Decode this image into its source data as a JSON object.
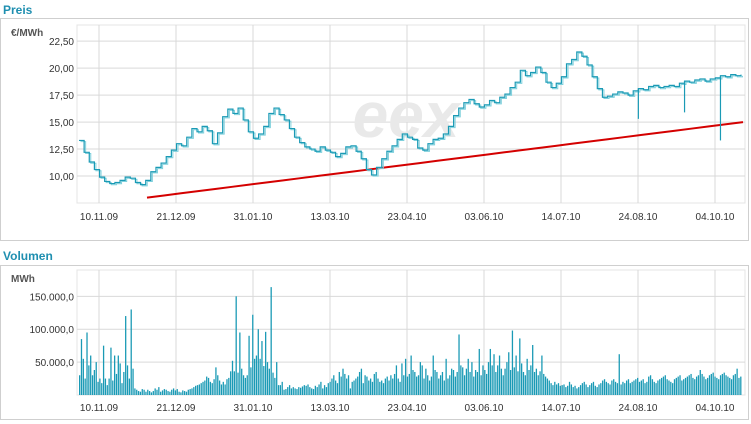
{
  "colors": {
    "title": "#1f8fb0",
    "price_line": "#1a9ab5",
    "price_line2": "#7fd0dc",
    "trend": "#d40000",
    "volume_bars": "#1a9ab5",
    "grid": "#d9d9d9",
    "watermark": "#e9e9e9",
    "watermark_accent": "#f6d6d6"
  },
  "chart_data": [
    {
      "type": "line",
      "title": "Preis",
      "ylabel": "€/MWh",
      "ylim": [
        7.5,
        24
      ],
      "yticks": [
        "10,00",
        "12,50",
        "15,00",
        "17,50",
        "20,00",
        "22,50"
      ],
      "ytick_values": [
        10,
        12.5,
        15,
        17.5,
        20,
        22.5
      ],
      "xticks": [
        "10.11.09",
        "21.12.09",
        "31.01.10",
        "13.03.10",
        "23.04.10",
        "03.06.10",
        "14.07.10",
        "24.08.10",
        "04.10.10"
      ],
      "grid": true,
      "watermark": "eex",
      "series": [
        {
          "values": [
            13.3,
            12.2,
            11.3,
            10.6,
            9.9,
            9.5,
            9.3,
            9.4,
            9.6,
            9.9,
            9.8,
            9.4,
            9.2,
            9.6,
            10.4,
            10.8,
            11.2,
            11.8,
            12.4,
            13.0,
            12.8,
            13.6,
            14.4,
            14.1,
            14.6,
            14.2,
            13.0,
            14.0,
            15.5,
            16.2,
            15.8,
            16.3,
            15.2,
            14.1,
            13.5,
            13.9,
            14.6,
            15.8,
            16.3,
            15.7,
            15.2,
            14.4,
            13.6,
            13.1,
            12.7,
            12.5,
            12.3,
            12.7,
            12.4,
            12.2,
            11.8,
            12.1,
            12.7,
            12.8,
            12.3,
            11.6,
            10.6,
            10.1,
            10.8,
            11.6,
            12.3,
            12.8,
            13.4,
            13.9,
            13.6,
            13.4,
            12.6,
            12.4,
            13.0,
            13.4,
            13.5,
            13.9,
            14.6,
            15.6,
            16.3,
            16.8,
            17.1,
            16.7,
            16.4,
            16.6,
            17.0,
            16.8,
            17.3,
            17.6,
            18.2,
            18.7,
            19.8,
            19.3,
            19.6,
            20.1,
            19.6,
            18.7,
            18.2,
            18.6,
            19.2,
            20.4,
            20.8,
            21.5,
            21.1,
            20.3,
            19.2,
            18.1,
            17.3,
            17.4,
            17.6,
            17.8,
            17.7,
            17.5,
            17.9,
            18.1,
            18.0,
            18.3,
            18.4,
            18.2,
            18.3,
            18.4,
            18.3,
            18.6,
            18.8,
            18.7,
            18.9,
            19.0,
            18.8,
            19.0,
            19.1,
            19.3,
            19.2,
            19.4,
            19.3,
            19.4
          ]
        },
        {
          "name": "",
          "values": [
            8.0,
            8.2,
            8.4,
            8.6,
            8.8,
            9.0,
            9.2,
            9.4,
            9.6,
            9.8,
            10.0,
            10.2,
            10.4,
            10.6,
            10.8,
            11.0,
            11.2,
            11.4,
            11.6,
            11.8,
            12.0,
            12.2,
            12.4,
            12.6,
            12.8,
            13.0,
            13.2,
            13.4,
            13.6,
            13.8,
            14.0,
            14.2,
            14.4,
            14.6,
            14.8,
            15.0
          ]
        }
      ],
      "spikes": [
        {
          "index": 109,
          "value": 15.3
        },
        {
          "index": 118,
          "value": 15.9
        },
        {
          "index": 125,
          "value": 13.3
        }
      ]
    },
    {
      "type": "bar",
      "title": "Volumen",
      "ylabel": "MWh",
      "ylim": [
        0,
        190000
      ],
      "yticks": [
        "50.000,0",
        "100.000,0",
        "150.000,0"
      ],
      "ytick_values": [
        50000,
        100000,
        150000
      ],
      "xticks": [
        "10.11.09",
        "21.12.09",
        "31.01.10",
        "13.03.10",
        "23.04.10",
        "03.06.10",
        "14.07.10",
        "24.08.10",
        "04.10.10"
      ],
      "grid": true,
      "values": [
        30000,
        85000,
        55000,
        25000,
        95000,
        45000,
        60000,
        30000,
        38000,
        50000,
        20000,
        25000,
        18000,
        75000,
        25000,
        15000,
        25000,
        72000,
        22000,
        60000,
        32000,
        60000,
        48000,
        18000,
        35000,
        120000,
        45000,
        25000,
        130000,
        40000,
        10000,
        8000,
        6000,
        5000,
        9000,
        8000,
        5000,
        8000,
        6000,
        4000,
        6000,
        10000,
        8000,
        12000,
        5000,
        7000,
        9000,
        8000,
        6000,
        5000,
        8000,
        10000,
        7000,
        9000,
        5000,
        4000,
        7000,
        6000,
        5000,
        8000,
        9000,
        10000,
        12000,
        14000,
        15000,
        16000,
        18000,
        20000,
        22000,
        28000,
        26000,
        20000,
        18000,
        24000,
        42000,
        30000,
        22000,
        16000,
        20000,
        16000,
        24000,
        26000,
        36000,
        52000,
        36000,
        150000,
        34000,
        95000,
        40000,
        30000,
        26000,
        30000,
        90000,
        42000,
        122000,
        55000,
        60000,
        100000,
        55000,
        82000,
        44000,
        96000,
        50000,
        40000,
        164000,
        34000,
        26000,
        50000,
        15000,
        15000,
        20000,
        8000,
        9000,
        12000,
        15000,
        10000,
        12000,
        10000,
        9000,
        12000,
        11000,
        13000,
        15000,
        14000,
        16000,
        12000,
        10000,
        9000,
        14000,
        12000,
        16000,
        20000,
        10000,
        15000,
        12000,
        18000,
        20000,
        25000,
        30000,
        22000,
        18000,
        35000,
        28000,
        40000,
        32000,
        25000,
        30000,
        10000,
        20000,
        22000,
        25000,
        28000,
        35000,
        40000,
        18000,
        30000,
        28000,
        22000,
        25000,
        20000,
        32000,
        35000,
        25000,
        20000,
        22000,
        18000,
        25000,
        28000,
        22000,
        30000,
        25000,
        32000,
        45000,
        25000,
        20000,
        48000,
        30000,
        55000,
        28000,
        32000,
        60000,
        38000,
        35000,
        28000,
        30000,
        50000,
        45000,
        25000,
        40000,
        30000,
        22000,
        28000,
        60000,
        38000,
        35000,
        25000,
        30000,
        35000,
        22000,
        55000,
        25000,
        30000,
        40000,
        38000,
        28000,
        35000,
        92000,
        45000,
        42000,
        30000,
        40000,
        55000,
        35000,
        50000,
        28000,
        38000,
        35000,
        70000,
        30000,
        45000,
        38000,
        32000,
        50000,
        70000,
        45000,
        62000,
        35000,
        45000,
        60000,
        40000,
        30000,
        40000,
        50000,
        65000,
        38000,
        98000,
        42000,
        60000,
        36000,
        86000,
        48000,
        35000,
        30000,
        55000,
        38000,
        45000,
        76000,
        35000,
        40000,
        30000,
        36000,
        60000,
        32000,
        28000,
        25000,
        22000,
        18000,
        15000,
        20000,
        16000,
        18000,
        14000,
        15000,
        16000,
        12000,
        14000,
        20000,
        16000,
        12000,
        14000,
        10000,
        12000,
        15000,
        18000,
        20000,
        16000,
        12000,
        15000,
        18000,
        20000,
        14000,
        12000,
        16000,
        18000,
        22000,
        24000,
        20000,
        18000,
        16000,
        22000,
        24000,
        20000,
        18000,
        62000,
        16000,
        20000,
        18000,
        22000,
        24000,
        18000,
        20000,
        22000,
        24000,
        26000,
        20000,
        22000,
        24000,
        18000,
        20000,
        28000,
        30000,
        24000,
        20000,
        18000,
        22000,
        24000,
        26000,
        28000,
        30000,
        24000,
        22000,
        20000,
        18000,
        24000,
        26000,
        28000,
        30000,
        22000,
        24000,
        26000,
        28000,
        30000,
        32000,
        26000,
        24000,
        28000,
        30000,
        38000,
        32000,
        28000,
        24000,
        26000,
        30000,
        32000,
        34000,
        28000,
        26000,
        24000,
        30000,
        32000,
        34000,
        30000,
        28000,
        26000,
        24000,
        30000,
        32000,
        40000,
        26000,
        28000
      ]
    }
  ]
}
